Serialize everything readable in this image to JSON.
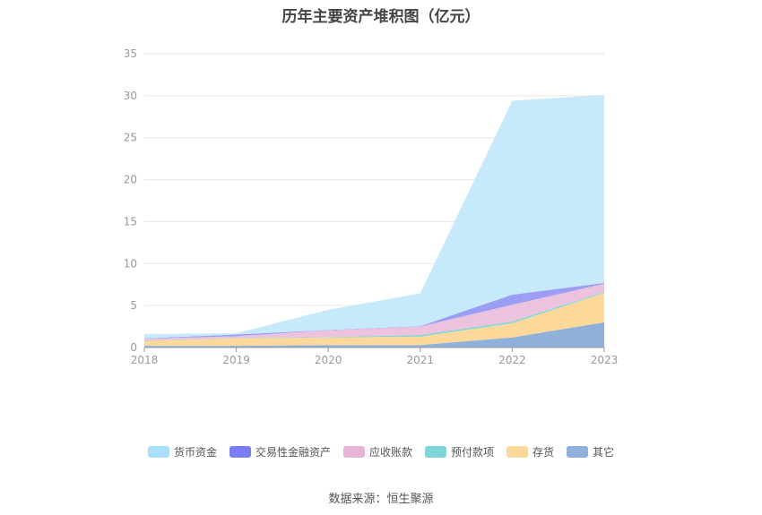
{
  "chart_data": {
    "type": "area",
    "stacked": true,
    "title": "历年主要资产堆积图（亿元）",
    "categories": [
      "2018",
      "2019",
      "2020",
      "2021",
      "2022",
      "2023"
    ],
    "ylim": [
      0,
      35
    ],
    "yticks": [
      0,
      5,
      10,
      15,
      20,
      25,
      30,
      35
    ],
    "grid": true,
    "legend_position": "bottom",
    "series": [
      {
        "name": "其它",
        "color": "#8eb0db",
        "values": [
          0.2,
          0.2,
          0.3,
          0.3,
          1.2,
          3.0
        ]
      },
      {
        "name": "存货",
        "color": "#fcd89a",
        "values": [
          0.6,
          0.9,
          0.9,
          1.0,
          1.7,
          3.5
        ]
      },
      {
        "name": "预付款项",
        "color": "#86d6d6",
        "values": [
          0.05,
          0.05,
          0.05,
          0.2,
          0.2,
          0.1
        ]
      },
      {
        "name": "应收账款",
        "color": "#ecc3df",
        "values": [
          0.2,
          0.2,
          0.8,
          1.0,
          2.0,
          1.0
        ]
      },
      {
        "name": "交易性金融资产",
        "color": "#9c9df5",
        "values": [
          0.05,
          0.2,
          0.05,
          0.05,
          1.2,
          0.1
        ]
      },
      {
        "name": "货币资金",
        "color": "#c6e9fb",
        "values": [
          0.5,
          0.15,
          2.4,
          3.9,
          23.1,
          22.4
        ]
      }
    ],
    "legend_order": [
      "货币资金",
      "交易性金融资产",
      "应收账款",
      "预付款项",
      "存货",
      "其它"
    ],
    "legend_colors": {
      "货币资金": "#a9dff8",
      "交易性金融资产": "#7b7ef0",
      "应收账款": "#e5b4d6",
      "预付款项": "#7fd6d6",
      "存货": "#fbd79a",
      "其它": "#8eb0db"
    }
  },
  "source": "数据来源：恒生聚源"
}
